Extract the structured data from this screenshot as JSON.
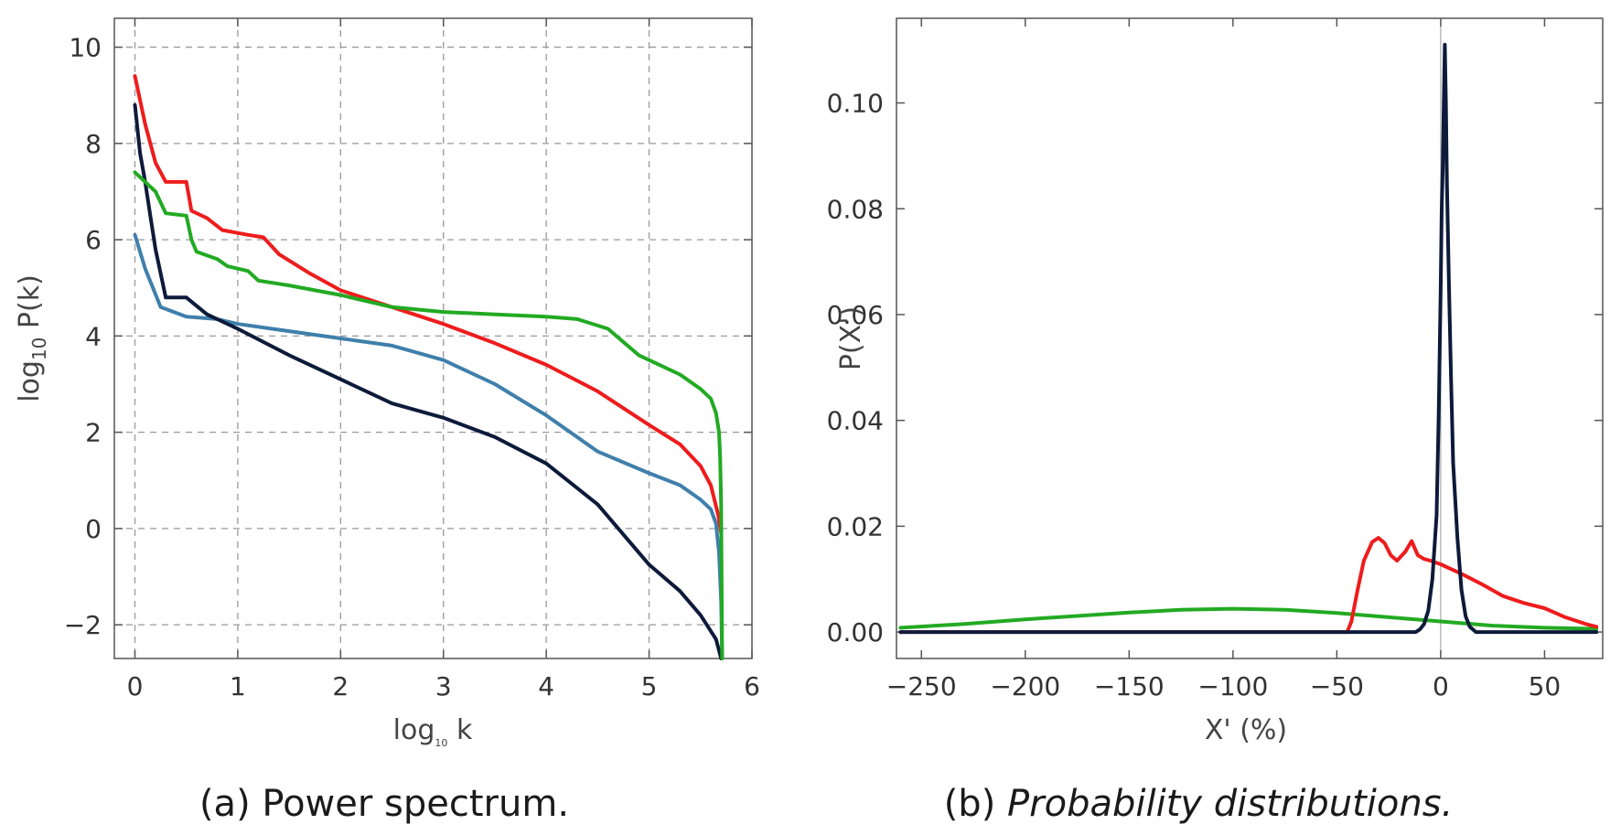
{
  "chart_data": [
    {
      "type": "line",
      "caption": "(a) Power spectrum.",
      "xlabel": {
        "base": "log",
        "sub": "10",
        "tail": " k"
      },
      "ylabel": {
        "base": "log",
        "sub": "10",
        "tail": " P(k)"
      },
      "xlim": [
        -0.2,
        6.0
      ],
      "ylim": [
        -2.7,
        10.6
      ],
      "xticks": [
        0,
        1,
        2,
        3,
        4,
        5,
        6
      ],
      "yticks": [
        -2,
        0,
        2,
        4,
        6,
        8,
        10
      ],
      "xtick_labels": [
        "0",
        "1",
        "2",
        "3",
        "4",
        "5",
        "6"
      ],
      "ytick_labels": [
        "−2",
        "0",
        "2",
        "4",
        "6",
        "8",
        "10"
      ],
      "grid": "dashed",
      "series": [
        {
          "name": "blue",
          "color": "#3f7fab",
          "points": [
            [
              0,
              6.1
            ],
            [
              0.1,
              5.4
            ],
            [
              0.25,
              4.6
            ],
            [
              0.5,
              4.4
            ],
            [
              0.8,
              4.35
            ],
            [
              1,
              4.25
            ],
            [
              1.5,
              4.1
            ],
            [
              2,
              3.95
            ],
            [
              2.5,
              3.8
            ],
            [
              3,
              3.5
            ],
            [
              3.5,
              3.0
            ],
            [
              4,
              2.35
            ],
            [
              4.5,
              1.6
            ],
            [
              5,
              1.15
            ],
            [
              5.3,
              0.9
            ],
            [
              5.5,
              0.6
            ],
            [
              5.6,
              0.4
            ],
            [
              5.65,
              0.1
            ],
            [
              5.68,
              -0.5
            ],
            [
              5.7,
              -1.5
            ],
            [
              5.71,
              -2.7
            ]
          ]
        },
        {
          "name": "navy",
          "color": "#0d1a3a",
          "points": [
            [
              0,
              8.8
            ],
            [
              0.05,
              7.8
            ],
            [
              0.1,
              7.2
            ],
            [
              0.15,
              6.5
            ],
            [
              0.2,
              5.8
            ],
            [
              0.3,
              4.8
            ],
            [
              0.5,
              4.8
            ],
            [
              0.7,
              4.45
            ],
            [
              1,
              4.15
            ],
            [
              1.5,
              3.6
            ],
            [
              2,
              3.1
            ],
            [
              2.5,
              2.6
            ],
            [
              3,
              2.3
            ],
            [
              3.5,
              1.9
            ],
            [
              4,
              1.35
            ],
            [
              4.5,
              0.5
            ],
            [
              5,
              -0.75
            ],
            [
              5.3,
              -1.3
            ],
            [
              5.5,
              -1.8
            ],
            [
              5.65,
              -2.3
            ],
            [
              5.7,
              -2.7
            ]
          ]
        },
        {
          "name": "red",
          "color": "#ee1c1c",
          "points": [
            [
              0,
              9.4
            ],
            [
              0.1,
              8.4
            ],
            [
              0.2,
              7.6
            ],
            [
              0.3,
              7.2
            ],
            [
              0.5,
              7.2
            ],
            [
              0.55,
              6.6
            ],
            [
              0.7,
              6.45
            ],
            [
              0.85,
              6.2
            ],
            [
              1.1,
              6.1
            ],
            [
              1.25,
              6.05
            ],
            [
              1.4,
              5.7
            ],
            [
              1.7,
              5.3
            ],
            [
              2,
              4.95
            ],
            [
              2.5,
              4.6
            ],
            [
              3,
              4.25
            ],
            [
              3.5,
              3.85
            ],
            [
              4,
              3.4
            ],
            [
              4.5,
              2.85
            ],
            [
              5,
              2.15
            ],
            [
              5.3,
              1.75
            ],
            [
              5.5,
              1.3
            ],
            [
              5.6,
              0.9
            ],
            [
              5.67,
              0.3
            ],
            [
              5.7,
              -0.1
            ]
          ]
        },
        {
          "name": "green",
          "color": "#22aa22",
          "points": [
            [
              0,
              7.4
            ],
            [
              0.2,
              7.0
            ],
            [
              0.3,
              6.55
            ],
            [
              0.5,
              6.5
            ],
            [
              0.55,
              6.0
            ],
            [
              0.6,
              5.75
            ],
            [
              0.8,
              5.6
            ],
            [
              0.9,
              5.45
            ],
            [
              1.1,
              5.35
            ],
            [
              1.2,
              5.15
            ],
            [
              1.5,
              5.05
            ],
            [
              2,
              4.85
            ],
            [
              2.5,
              4.6
            ],
            [
              3,
              4.5
            ],
            [
              3.5,
              4.45
            ],
            [
              4,
              4.4
            ],
            [
              4.3,
              4.35
            ],
            [
              4.6,
              4.15
            ],
            [
              4.9,
              3.6
            ],
            [
              5.1,
              3.4
            ],
            [
              5.3,
              3.2
            ],
            [
              5.5,
              2.9
            ],
            [
              5.6,
              2.7
            ],
            [
              5.65,
              2.4
            ],
            [
              5.68,
              2.0
            ],
            [
              5.69,
              1.5
            ],
            [
              5.7,
              0.5
            ],
            [
              5.71,
              -2.7
            ]
          ]
        }
      ]
    },
    {
      "type": "line",
      "caption": "Probability distributions.",
      "caption_prefix": "(b) ",
      "xlabel": "X' (%)",
      "ylabel": "P(X')",
      "xlim": [
        -262,
        78
      ],
      "ylim": [
        -0.005,
        0.116
      ],
      "xticks": [
        -250,
        -200,
        -150,
        -100,
        -50,
        0,
        50
      ],
      "yticks": [
        0.0,
        0.02,
        0.04,
        0.06,
        0.08,
        0.1
      ],
      "xtick_labels": [
        "−250",
        "−200",
        "−150",
        "−100",
        "−50",
        "0",
        "50"
      ],
      "ytick_labels": [
        "0.00",
        "0.02",
        "0.04",
        "0.06",
        "0.08",
        "0.10"
      ],
      "grid": "none",
      "vline_at": 0,
      "series": [
        {
          "name": "green",
          "color": "#22aa22",
          "points": [
            [
              -260,
              0.0008
            ],
            [
              -230,
              0.0015
            ],
            [
              -200,
              0.0024
            ],
            [
              -150,
              0.0037
            ],
            [
              -125,
              0.0042
            ],
            [
              -100,
              0.0044
            ],
            [
              -75,
              0.0042
            ],
            [
              -50,
              0.0036
            ],
            [
              -25,
              0.0028
            ],
            [
              0,
              0.002
            ],
            [
              25,
              0.0012
            ],
            [
              50,
              0.0008
            ],
            [
              75,
              0.0006
            ]
          ]
        },
        {
          "name": "red",
          "color": "#ee1c1c",
          "points": [
            [
              -260,
              0
            ],
            [
              -45,
              0
            ],
            [
              -43,
              0.002
            ],
            [
              -40,
              0.008
            ],
            [
              -37,
              0.0135
            ],
            [
              -33,
              0.017
            ],
            [
              -30,
              0.0178
            ],
            [
              -27,
              0.0168
            ],
            [
              -24,
              0.0145
            ],
            [
              -21,
              0.0135
            ],
            [
              -17,
              0.0152
            ],
            [
              -14,
              0.0172
            ],
            [
              -11,
              0.0145
            ],
            [
              -8,
              0.0138
            ],
            [
              -5,
              0.0135
            ],
            [
              0,
              0.0128
            ],
            [
              10,
              0.011
            ],
            [
              20,
              0.009
            ],
            [
              30,
              0.0068
            ],
            [
              40,
              0.0055
            ],
            [
              50,
              0.0045
            ],
            [
              60,
              0.0028
            ],
            [
              70,
              0.0015
            ],
            [
              75,
              0.001
            ]
          ]
        },
        {
          "name": "navy",
          "color": "#0d1a3a",
          "points": [
            [
              -260,
              0
            ],
            [
              -12,
              0
            ],
            [
              -10,
              0.0005
            ],
            [
              -8,
              0.0015
            ],
            [
              -6,
              0.004
            ],
            [
              -4,
              0.01
            ],
            [
              -2,
              0.022
            ],
            [
              -1,
              0.04
            ],
            [
              0,
              0.065
            ],
            [
              0.5,
              0.08
            ],
            [
              1,
              0.088
            ],
            [
              1.5,
              0.1
            ],
            [
              2,
              0.111
            ],
            [
              2.5,
              0.1
            ],
            [
              3,
              0.085
            ],
            [
              4,
              0.065
            ],
            [
              5,
              0.048
            ],
            [
              6,
              0.032
            ],
            [
              8,
              0.018
            ],
            [
              10,
              0.008
            ],
            [
              12,
              0.003
            ],
            [
              14,
              0.001
            ],
            [
              17,
              0
            ],
            [
              75,
              0
            ]
          ]
        }
      ]
    }
  ]
}
